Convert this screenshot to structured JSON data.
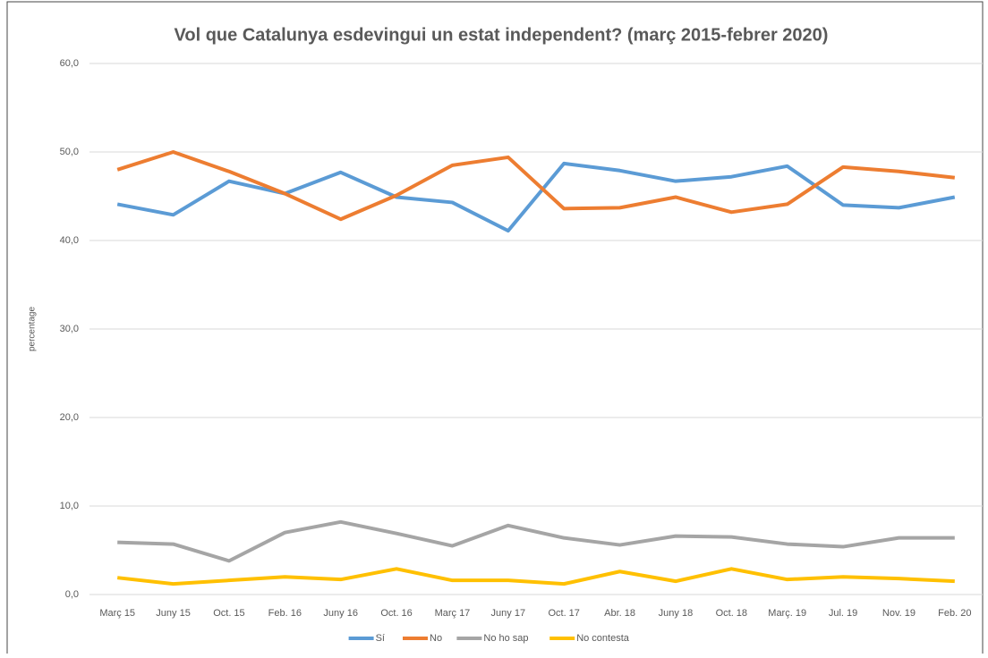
{
  "chart_data": {
    "type": "line",
    "title": "Vol que Catalunya esdevingui un estat independent? (març 2015-febrer 2020)",
    "y_label": "percentage",
    "categories": [
      "Març 15",
      "Juny 15",
      "Oct. 15",
      "Feb. 16",
      "Juny 16",
      "Oct. 16",
      "Març 17",
      "Juny 17",
      "Oct. 17",
      "Abr. 18",
      "Juny 18",
      "Oct. 18",
      "Març. 19",
      "Jul. 19",
      "Nov. 19",
      "Feb. 20"
    ],
    "series": [
      {
        "name": "Sí",
        "color": "#5b9bd5",
        "values": [
          44.1,
          42.9,
          46.7,
          45.3,
          47.7,
          44.9,
          44.3,
          41.1,
          48.7,
          47.9,
          46.7,
          47.2,
          48.4,
          44.0,
          43.7,
          44.9
        ]
      },
      {
        "name": "No",
        "color": "#ed7d31",
        "values": [
          48.0,
          50.0,
          47.8,
          45.3,
          42.4,
          45.1,
          48.5,
          49.4,
          43.6,
          43.7,
          44.9,
          43.2,
          44.1,
          48.3,
          47.8,
          47.1
        ]
      },
      {
        "name": "No ho sap",
        "color": "#a5a5a5",
        "values": [
          5.9,
          5.7,
          3.8,
          7.0,
          8.2,
          6.9,
          5.5,
          7.8,
          6.4,
          5.6,
          6.6,
          6.5,
          5.7,
          5.4,
          6.4,
          6.4
        ]
      },
      {
        "name": "No contesta",
        "color": "#ffc000",
        "values": [
          1.9,
          1.2,
          1.6,
          2.0,
          1.7,
          2.9,
          1.6,
          1.6,
          1.2,
          2.6,
          1.5,
          2.9,
          1.7,
          2.0,
          1.8,
          1.5
        ]
      }
    ],
    "ylim": [
      0,
      60
    ],
    "yticks": [
      {
        "value": 0,
        "label": "0,0"
      },
      {
        "value": 10,
        "label": "10,0"
      },
      {
        "value": 20,
        "label": "20,0"
      },
      {
        "value": 30,
        "label": "30,0"
      },
      {
        "value": 40,
        "label": "40,0"
      },
      {
        "value": 50,
        "label": "50,0"
      },
      {
        "value": 60,
        "label": "60,0"
      }
    ],
    "grid": true,
    "legend": "bottom"
  }
}
